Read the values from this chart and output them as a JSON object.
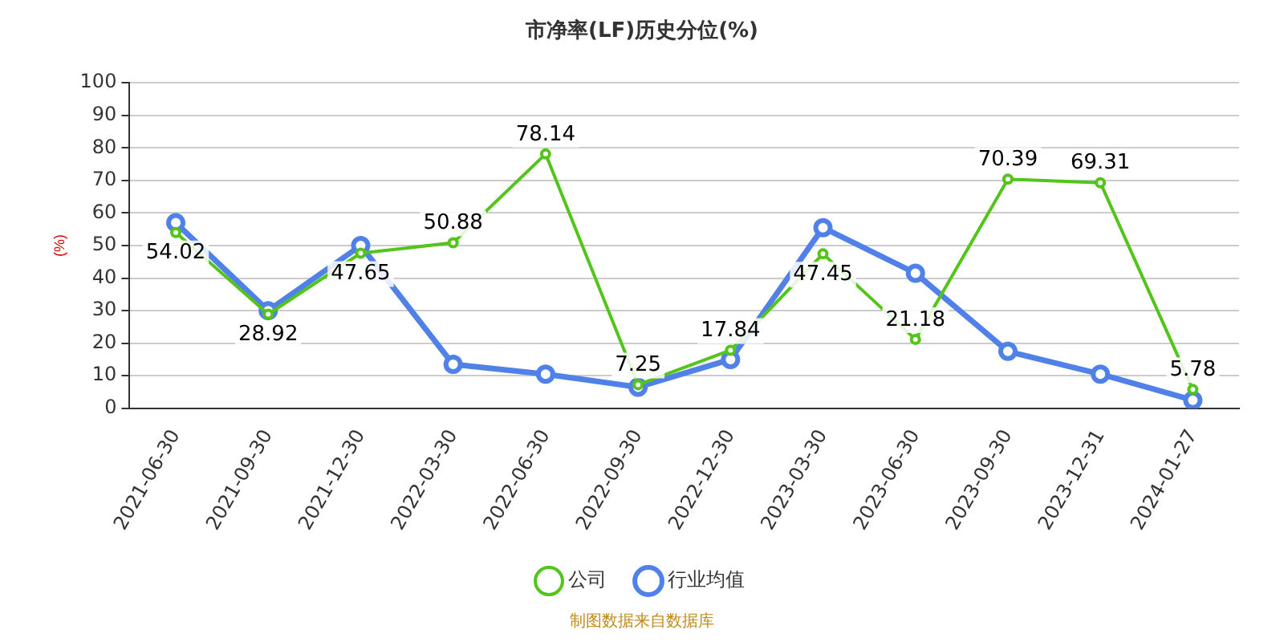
{
  "chart_data": {
    "type": "line",
    "title": "市净率(LF)历史分位(%)",
    "ylabel": "(%)",
    "categories": [
      "2021-06-30",
      "2021-09-30",
      "2021-12-30",
      "2022-03-30",
      "2022-06-30",
      "2022-09-30",
      "2022-12-30",
      "2023-03-30",
      "2023-06-30",
      "2023-09-30",
      "2023-12-31",
      "2024-01-27"
    ],
    "series": [
      {
        "name": "公司",
        "color": "#52c41a",
        "values": [
          54.02,
          28.92,
          47.65,
          50.88,
          78.14,
          7.25,
          17.84,
          47.45,
          21.18,
          70.39,
          69.31,
          5.78
        ],
        "value_labels": [
          "54.02",
          "28.92",
          "47.65",
          "50.88",
          "78.14",
          "7.25",
          "17.84",
          "47.45",
          "21.18",
          "70.39",
          "69.31",
          "5.78"
        ]
      },
      {
        "name": "行业均值",
        "color": "#4f81e8",
        "values": [
          57,
          30,
          50,
          13.5,
          10.5,
          6.5,
          15,
          55.5,
          41.5,
          17.5,
          10.5,
          2.5
        ]
      }
    ],
    "ylim": [
      0,
      100
    ],
    "yticks": [
      0,
      10,
      20,
      30,
      40,
      50,
      60,
      70,
      80,
      90,
      100
    ],
    "grid": "y",
    "legend": "bottom",
    "marker": "circle",
    "line_style": "solid",
    "annotations": [
      "制图数据来自数据库"
    ]
  }
}
